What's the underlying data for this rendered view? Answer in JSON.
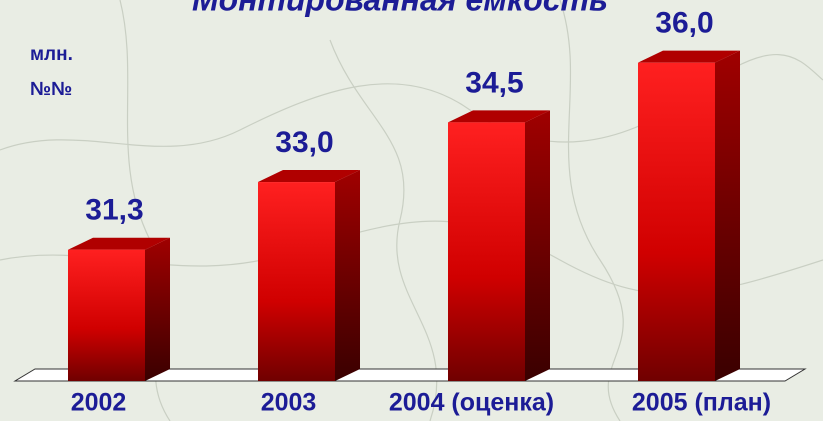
{
  "chart_data": {
    "type": "bar",
    "title": "Монтированная емкость",
    "y_label": [
      "млн.",
      "№№"
    ],
    "categories": [
      "2002",
      "2003",
      "2004 (оценка)",
      "2005 (план)"
    ],
    "values": [
      31.3,
      33.0,
      34.5,
      36.0
    ],
    "value_labels": [
      "31,3",
      "33,0",
      "34,5",
      "36,0"
    ],
    "color": "#ff1a1a",
    "ylim": [
      28,
      37.5
    ]
  }
}
